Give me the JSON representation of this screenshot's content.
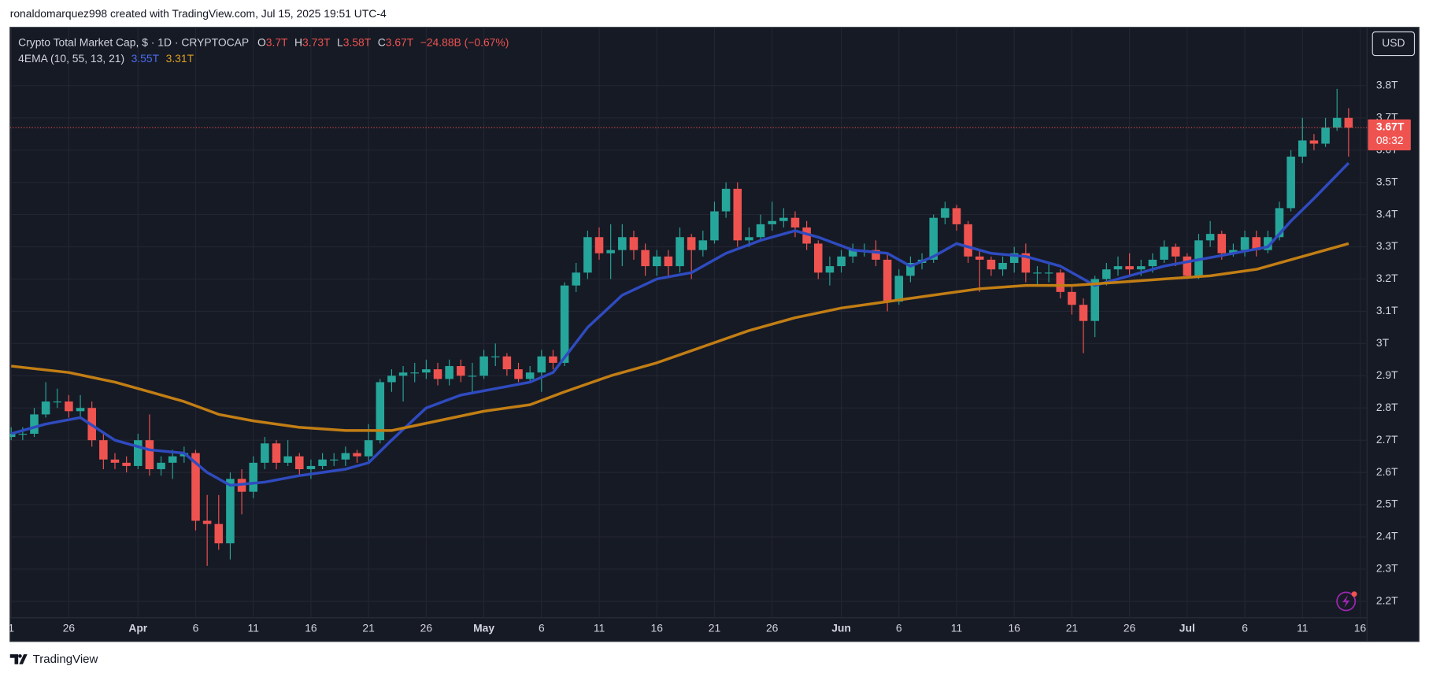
{
  "header": {
    "attribution": "ronaldomarquez998 created with TradingView.com, Jul 15, 2025 19:51 UTC-4"
  },
  "footer": {
    "brand": "TradingView"
  },
  "chart_data": {
    "type": "candlestick",
    "title": "Crypto Total Market Cap, $ · 1D · CRYPTOCAP",
    "ohlc_labels": [
      "O",
      "H",
      "L",
      "C"
    ],
    "ohlc_values": [
      "3.7T",
      "3.73T",
      "3.58T",
      "3.67T"
    ],
    "change": "−24.88B (−0.67%)",
    "indicator": "4EMA (10, 55, 13, 21)",
    "indicator_values": [
      "3.55T",
      "3.31T"
    ],
    "currency": "USD",
    "last_price_label": "3.67T",
    "countdown": "08:32",
    "up_color": "#26a69a",
    "down_color": "#ef5350",
    "grid": true,
    "xlim": [
      -0.1,
      117.6
    ],
    "ylim": [
      2.149,
      3.981
    ],
    "yticks": [
      {
        "value": 2.2,
        "label": "2.2T"
      },
      {
        "value": 2.3,
        "label": "2.3T"
      },
      {
        "value": 2.4,
        "label": "2.4T"
      },
      {
        "value": 2.5,
        "label": "2.5T"
      },
      {
        "value": 2.6,
        "label": "2.6T"
      },
      {
        "value": 2.7,
        "label": "2.7T"
      },
      {
        "value": 2.8,
        "label": "2.8T"
      },
      {
        "value": 2.9,
        "label": "2.9T"
      },
      {
        "value": 3,
        "label": "3T"
      },
      {
        "value": 3.1,
        "label": "3.1T"
      },
      {
        "value": 3.2,
        "label": "3.2T"
      },
      {
        "value": 3.3,
        "label": "3.3T"
      },
      {
        "value": 3.4,
        "label": "3.4T"
      },
      {
        "value": 3.5,
        "label": "3.5T"
      },
      {
        "value": 3.6,
        "label": "3.6T"
      },
      {
        "value": 3.7,
        "label": "3.7T"
      },
      {
        "value": 3.8,
        "label": "3.8T"
      }
    ],
    "xticks": [
      {
        "value": 0,
        "label": "1"
      },
      {
        "value": 5,
        "label": "26"
      },
      {
        "value": 11,
        "label": "Apr"
      },
      {
        "value": 16,
        "label": "6"
      },
      {
        "value": 21,
        "label": "11"
      },
      {
        "value": 26,
        "label": "16"
      },
      {
        "value": 31,
        "label": "21"
      },
      {
        "value": 36,
        "label": "26"
      },
      {
        "value": 41,
        "label": "May"
      },
      {
        "value": 46,
        "label": "6"
      },
      {
        "value": 51,
        "label": "11"
      },
      {
        "value": 56,
        "label": "16"
      },
      {
        "value": 61,
        "label": "21"
      },
      {
        "value": 66,
        "label": "26"
      },
      {
        "value": 72,
        "label": "Jun"
      },
      {
        "value": 77,
        "label": "6"
      },
      {
        "value": 82,
        "label": "11"
      },
      {
        "value": 87,
        "label": "16"
      },
      {
        "value": 92,
        "label": "21"
      },
      {
        "value": 97,
        "label": "26"
      },
      {
        "value": 102,
        "label": "Jul"
      },
      {
        "value": 107,
        "label": "6"
      },
      {
        "value": 112,
        "label": "11"
      },
      {
        "value": 117,
        "label": "16"
      }
    ],
    "open": [
      2.71,
      2.72,
      2.72,
      2.78,
      2.82,
      2.82,
      2.79,
      2.8,
      2.7,
      2.64,
      2.63,
      2.62,
      2.7,
      2.61,
      2.63,
      2.65,
      2.66,
      2.45,
      2.44,
      2.38,
      2.58,
      2.54,
      2.63,
      2.69,
      2.63,
      2.65,
      2.61,
      2.62,
      2.64,
      2.64,
      2.66,
      2.65,
      2.7,
      2.88,
      2.9,
      2.91,
      2.91,
      2.92,
      2.89,
      2.93,
      2.9,
      2.9,
      2.96,
      2.96,
      2.92,
      2.89,
      2.91,
      2.96,
      2.94,
      3.18,
      3.22,
      3.33,
      3.28,
      3.29,
      3.33,
      3.29,
      3.24,
      3.27,
      3.24,
      3.33,
      3.29,
      3.32,
      3.41,
      3.48,
      3.32,
      3.33,
      3.37,
      3.38,
      3.39,
      3.36,
      3.31,
      3.22,
      3.24,
      3.27,
      3.29,
      3.29,
      3.26,
      3.13,
      3.21,
      3.25,
      3.26,
      3.39,
      3.42,
      3.37,
      3.27,
      3.26,
      3.23,
      3.25,
      3.28,
      3.22,
      3.22,
      3.22,
      3.16,
      3.12,
      3.07,
      3.2,
      3.23,
      3.24,
      3.23,
      3.24,
      3.26,
      3.3,
      3.27,
      3.21,
      3.32,
      3.34,
      3.28,
      3.29,
      3.33,
      3.29,
      3.33,
      3.42,
      3.58,
      3.63,
      3.62,
      3.67,
      3.7
    ],
    "high": [
      2.74,
      2.74,
      2.8,
      2.88,
      2.86,
      2.84,
      2.84,
      2.82,
      2.72,
      2.66,
      2.65,
      2.72,
      2.78,
      2.65,
      2.67,
      2.68,
      2.67,
      2.53,
      2.53,
      2.6,
      2.61,
      2.65,
      2.71,
      2.7,
      2.7,
      2.66,
      2.64,
      2.66,
      2.66,
      2.68,
      2.67,
      2.75,
      2.89,
      2.92,
      2.93,
      2.94,
      2.95,
      2.94,
      2.95,
      2.95,
      2.94,
      2.98,
      3.0,
      2.97,
      2.94,
      2.93,
      2.98,
      2.98,
      3.19,
      3.25,
      3.35,
      3.36,
      3.37,
      3.37,
      3.35,
      3.31,
      3.29,
      3.29,
      3.36,
      3.34,
      3.35,
      3.44,
      3.5,
      3.5,
      3.36,
      3.4,
      3.44,
      3.42,
      3.41,
      3.38,
      3.32,
      3.27,
      3.29,
      3.31,
      3.31,
      3.32,
      3.28,
      3.23,
      3.27,
      3.28,
      3.4,
      3.44,
      3.43,
      3.38,
      3.29,
      3.27,
      3.27,
      3.3,
      3.31,
      3.24,
      3.25,
      3.23,
      3.18,
      3.14,
      3.21,
      3.25,
      3.27,
      3.28,
      3.26,
      3.28,
      3.32,
      3.31,
      3.28,
      3.34,
      3.38,
      3.35,
      3.31,
      3.35,
      3.35,
      3.35,
      3.44,
      3.6,
      3.7,
      3.65,
      3.7,
      3.79,
      3.73
    ],
    "low": [
      2.7,
      2.7,
      2.71,
      2.77,
      2.8,
      2.77,
      2.77,
      2.68,
      2.61,
      2.61,
      2.6,
      2.61,
      2.59,
      2.59,
      2.58,
      2.63,
      2.42,
      2.31,
      2.36,
      2.33,
      2.47,
      2.52,
      2.61,
      2.61,
      2.62,
      2.59,
      2.58,
      2.61,
      2.62,
      2.62,
      2.63,
      2.63,
      2.69,
      2.85,
      2.82,
      2.88,
      2.89,
      2.87,
      2.87,
      2.88,
      2.85,
      2.89,
      2.93,
      2.9,
      2.88,
      2.88,
      2.85,
      2.92,
      2.93,
      3.16,
      3.2,
      3.26,
      3.2,
      3.24,
      3.26,
      3.21,
      3.21,
      3.21,
      3.22,
      3.2,
      3.27,
      3.31,
      3.39,
      3.3,
      3.3,
      3.32,
      3.35,
      3.36,
      3.33,
      3.29,
      3.2,
      3.18,
      3.22,
      3.25,
      3.27,
      3.24,
      3.1,
      3.12,
      3.19,
      3.23,
      3.25,
      3.37,
      3.35,
      3.25,
      3.16,
      3.21,
      3.21,
      3.22,
      3.19,
      3.18,
      3.19,
      3.14,
      3.09,
      2.97,
      3.02,
      3.18,
      3.21,
      3.21,
      3.21,
      3.22,
      3.25,
      3.24,
      3.2,
      3.2,
      3.3,
      3.26,
      3.27,
      3.27,
      3.27,
      3.28,
      3.32,
      3.41,
      3.56,
      3.6,
      3.61,
      3.66,
      3.58
    ],
    "close": [
      2.72,
      2.72,
      2.78,
      2.82,
      2.82,
      2.79,
      2.8,
      2.7,
      2.64,
      2.63,
      2.62,
      2.7,
      2.61,
      2.63,
      2.65,
      2.66,
      2.45,
      2.44,
      2.38,
      2.58,
      2.54,
      2.63,
      2.69,
      2.63,
      2.65,
      2.61,
      2.62,
      2.64,
      2.64,
      2.66,
      2.65,
      2.7,
      2.88,
      2.9,
      2.91,
      2.91,
      2.92,
      2.89,
      2.93,
      2.9,
      2.9,
      2.96,
      2.96,
      2.92,
      2.89,
      2.91,
      2.96,
      2.94,
      3.18,
      3.22,
      3.33,
      3.28,
      3.29,
      3.33,
      3.29,
      3.24,
      3.27,
      3.24,
      3.33,
      3.29,
      3.32,
      3.41,
      3.48,
      3.32,
      3.33,
      3.37,
      3.38,
      3.39,
      3.36,
      3.31,
      3.22,
      3.24,
      3.27,
      3.29,
      3.29,
      3.26,
      3.13,
      3.21,
      3.25,
      3.26,
      3.39,
      3.42,
      3.37,
      3.27,
      3.26,
      3.23,
      3.25,
      3.28,
      3.22,
      3.22,
      3.22,
      3.16,
      3.12,
      3.07,
      3.2,
      3.23,
      3.24,
      3.23,
      3.24,
      3.26,
      3.3,
      3.27,
      3.21,
      3.32,
      3.34,
      3.28,
      3.29,
      3.33,
      3.29,
      3.33,
      3.42,
      3.58,
      3.63,
      3.62,
      3.67,
      3.7,
      3.67
    ],
    "series": [
      {
        "color": "#2f4bc0",
        "x": [
          0,
          3,
          6,
          9,
          12,
          15,
          17,
          19,
          22,
          25,
          29,
          31,
          33,
          36,
          39,
          42,
          45,
          47,
          50,
          53,
          56,
          59,
          62,
          65,
          68,
          70,
          73,
          76,
          78,
          80,
          82,
          85,
          88,
          91,
          94,
          97,
          100,
          103,
          106,
          109,
          111,
          113,
          116
        ],
        "values": [
          2.72,
          2.75,
          2.77,
          2.7,
          2.67,
          2.66,
          2.6,
          2.56,
          2.57,
          2.59,
          2.61,
          2.63,
          2.7,
          2.8,
          2.84,
          2.86,
          2.88,
          2.91,
          3.05,
          3.15,
          3.2,
          3.22,
          3.28,
          3.32,
          3.35,
          3.33,
          3.29,
          3.28,
          3.24,
          3.27,
          3.31,
          3.28,
          3.27,
          3.24,
          3.18,
          3.21,
          3.24,
          3.26,
          3.28,
          3.3,
          3.38,
          3.45,
          3.56
        ]
      },
      {
        "color": "#c27e14",
        "x": [
          0,
          5,
          9,
          12,
          15,
          18,
          21,
          25,
          29,
          33,
          37,
          41,
          45,
          48,
          52,
          56,
          60,
          64,
          68,
          72,
          76,
          80,
          84,
          88,
          92,
          96,
          100,
          104,
          108,
          112,
          116
        ],
        "values": [
          2.93,
          2.91,
          2.88,
          2.85,
          2.82,
          2.78,
          2.76,
          2.74,
          2.73,
          2.73,
          2.76,
          2.79,
          2.81,
          2.85,
          2.9,
          2.94,
          2.99,
          3.04,
          3.08,
          3.11,
          3.13,
          3.15,
          3.17,
          3.18,
          3.18,
          3.19,
          3.2,
          3.21,
          3.23,
          3.27,
          3.31
        ]
      }
    ]
  }
}
